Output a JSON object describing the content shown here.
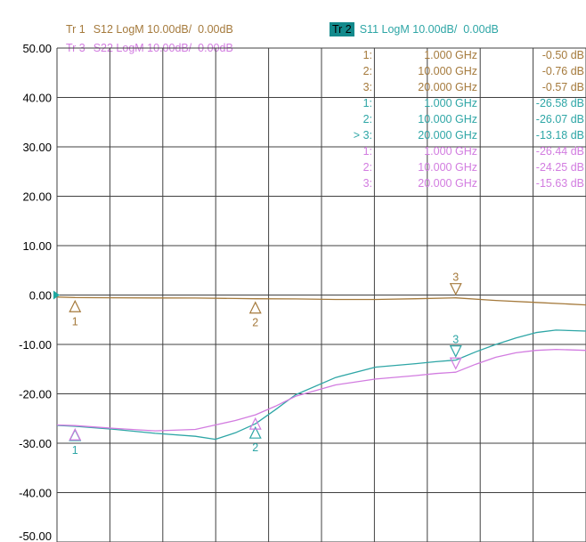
{
  "traces": [
    {
      "id": "tr1",
      "tag": "Tr 1",
      "label": "S12 LogM 10.00dB/  0.00dB",
      "color": "#a57a3c",
      "active": false
    },
    {
      "id": "tr2",
      "tag": "Tr 2",
      "label": "S11 LogM 10.00dB/  0.00dB",
      "color": "#2ea6a6",
      "active": true
    },
    {
      "id": "tr3",
      "tag": "Tr 3",
      "label": "S22 LogM 10.00dB/  0.00dB",
      "color": "#d27ce0",
      "active": false
    }
  ],
  "colors": {
    "grid": "#404040",
    "active_tag_bg": "#138a8c",
    "reference_marker": "#1ea7a0"
  },
  "chart_data": {
    "type": "line",
    "x_unit": "GHz",
    "xlim": [
      0.1,
      26.5
    ],
    "ylim": [
      -50,
      50
    ],
    "yticks": [
      "50.00",
      "40.00",
      "30.00",
      "20.00",
      "10.00",
      "0.00",
      "-10.00",
      "-20.00",
      "-30.00",
      "-40.00",
      "-50.00"
    ],
    "x_divisions": 10,
    "grid": true,
    "series": [
      {
        "trace": "tr1",
        "x": [
          0.1,
          1,
          3,
          5,
          7,
          9,
          10,
          12,
          14,
          16,
          18,
          20,
          22,
          24,
          26.5
        ],
        "y": [
          -0.4,
          -0.5,
          -0.55,
          -0.6,
          -0.62,
          -0.7,
          -0.76,
          -0.8,
          -0.9,
          -0.9,
          -0.75,
          -0.57,
          -1.1,
          -1.5,
          -2.0
        ]
      },
      {
        "trace": "tr2",
        "x": [
          0.1,
          1,
          3,
          5,
          7,
          8,
          9,
          10,
          11,
          12,
          14,
          16,
          18,
          19,
          20,
          21,
          22,
          23,
          24,
          25,
          26.5
        ],
        "y": [
          -26.4,
          -26.58,
          -27.2,
          -28.0,
          -28.6,
          -29.2,
          -27.9,
          -26.07,
          -23.2,
          -20.2,
          -16.7,
          -14.6,
          -13.9,
          -13.5,
          -13.18,
          -11.5,
          -10.0,
          -8.7,
          -7.6,
          -7.1,
          -7.3
        ]
      },
      {
        "trace": "tr3",
        "x": [
          0.1,
          1,
          3,
          5,
          7,
          8,
          9,
          10,
          11,
          12,
          14,
          16,
          18,
          19,
          20,
          21,
          22,
          23,
          24,
          25,
          26.5
        ],
        "y": [
          -26.3,
          -26.44,
          -27.0,
          -27.5,
          -27.2,
          -26.3,
          -25.4,
          -24.25,
          -22.5,
          -20.5,
          -18.2,
          -17.0,
          -16.3,
          -15.9,
          -15.63,
          -14.0,
          -12.6,
          -11.7,
          -11.2,
          -11.0,
          -11.2
        ]
      }
    ],
    "marker_table": [
      {
        "trace": "tr1",
        "num": "1:",
        "freq": "1.000 GHz",
        "value": "-0.50 dB"
      },
      {
        "trace": "tr1",
        "num": "2:",
        "freq": "10.000 GHz",
        "value": "-0.76 dB"
      },
      {
        "trace": "tr1",
        "num": "3:",
        "freq": "20.000 GHz",
        "value": "-0.57 dB"
      },
      {
        "trace": "tr2",
        "num": "1:",
        "freq": "1.000 GHz",
        "value": "-26.58 dB"
      },
      {
        "trace": "tr2",
        "num": "2:",
        "freq": "10.000 GHz",
        "value": "-26.07 dB"
      },
      {
        "trace": "tr2",
        "num": "> 3:",
        "freq": "20.000 GHz",
        "value": "-13.18 dB"
      },
      {
        "trace": "tr3",
        "num": "1:",
        "freq": "1.000 GHz",
        "value": "-26.44 dB"
      },
      {
        "trace": "tr3",
        "num": "2:",
        "freq": "10.000 GHz",
        "value": "-24.25 dB"
      },
      {
        "trace": "tr3",
        "num": "3:",
        "freq": "20.000 GHz",
        "value": "-15.63 dB"
      }
    ],
    "markers": [
      {
        "trace": "tr1",
        "label": "1",
        "x": 1,
        "y": -0.5
      },
      {
        "trace": "tr1",
        "label": "2",
        "x": 10,
        "y": -0.76
      },
      {
        "trace": "tr1",
        "label": "3",
        "x": 20,
        "y": -0.57
      },
      {
        "trace": "tr2",
        "label": "1",
        "x": 1,
        "y": -26.58
      },
      {
        "trace": "tr2",
        "label": "2",
        "x": 10,
        "y": -26.07
      },
      {
        "trace": "tr2",
        "label": "3",
        "x": 20,
        "y": -13.18
      },
      {
        "trace": "tr3",
        "label": "",
        "x": 1,
        "y": -26.44
      },
      {
        "trace": "tr3",
        "label": "",
        "x": 10,
        "y": -24.25
      },
      {
        "trace": "tr3",
        "label": "",
        "x": 20,
        "y": -15.63
      }
    ]
  }
}
